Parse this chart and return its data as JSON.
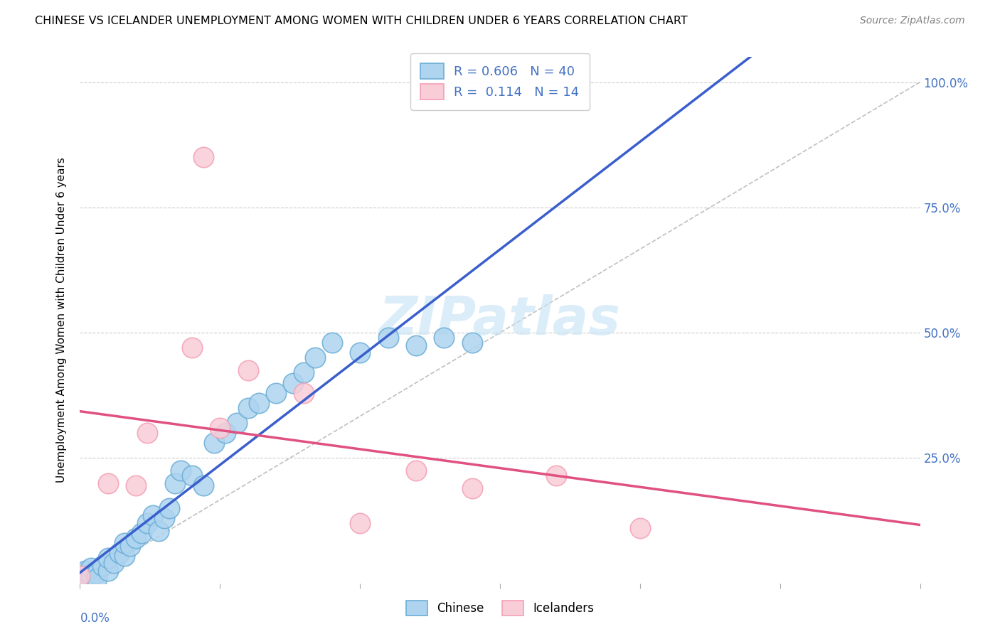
{
  "title": "CHINESE VS ICELANDER UNEMPLOYMENT AMONG WOMEN WITH CHILDREN UNDER 6 YEARS CORRELATION CHART",
  "source": "Source: ZipAtlas.com",
  "ylabel": "Unemployment Among Women with Children Under 6 years",
  "xlim": [
    0.0,
    0.15
  ],
  "ylim": [
    0.0,
    1.05
  ],
  "watermark": "ZIPatlas",
  "chinese_color_edge": "#6baed6",
  "chinese_color_fill": "#aed4ef",
  "icelander_color_edge": "#f4a0b5",
  "icelander_color_fill": "#f9cdd8",
  "trend_chinese_color": "#3a5fcd",
  "trend_icelander_color": "#e05080",
  "diagonal_color": "#b8b8b8",
  "background_color": "#ffffff",
  "grid_color": "#cccccc",
  "axis_label_color": "#4472c4",
  "chinese_x": [
    0.0,
    0.001,
    0.002,
    0.002,
    0.003,
    0.003,
    0.004,
    0.005,
    0.005,
    0.006,
    0.007,
    0.008,
    0.008,
    0.009,
    0.01,
    0.011,
    0.012,
    0.013,
    0.014,
    0.015,
    0.016,
    0.017,
    0.018,
    0.02,
    0.022,
    0.024,
    0.026,
    0.028,
    0.03,
    0.032,
    0.035,
    0.038,
    0.04,
    0.042,
    0.045,
    0.05,
    0.055,
    0.06,
    0.065,
    0.07
  ],
  "chinese_y": [
    0.02,
    0.025,
    0.015,
    0.03,
    0.02,
    0.01,
    0.035,
    0.025,
    0.05,
    0.04,
    0.06,
    0.055,
    0.08,
    0.075,
    0.09,
    0.1,
    0.12,
    0.135,
    0.105,
    0.13,
    0.15,
    0.2,
    0.225,
    0.215,
    0.195,
    0.28,
    0.3,
    0.32,
    0.35,
    0.36,
    0.38,
    0.4,
    0.42,
    0.45,
    0.48,
    0.46,
    0.49,
    0.475,
    0.49,
    0.48
  ],
  "icelander_x": [
    0.0,
    0.005,
    0.01,
    0.012,
    0.02,
    0.022,
    0.025,
    0.03,
    0.04,
    0.05,
    0.06,
    0.07,
    0.085,
    0.1
  ],
  "icelander_y": [
    0.015,
    0.2,
    0.195,
    0.3,
    0.47,
    0.85,
    0.31,
    0.425,
    0.38,
    0.12,
    0.225,
    0.19,
    0.215,
    0.11
  ]
}
